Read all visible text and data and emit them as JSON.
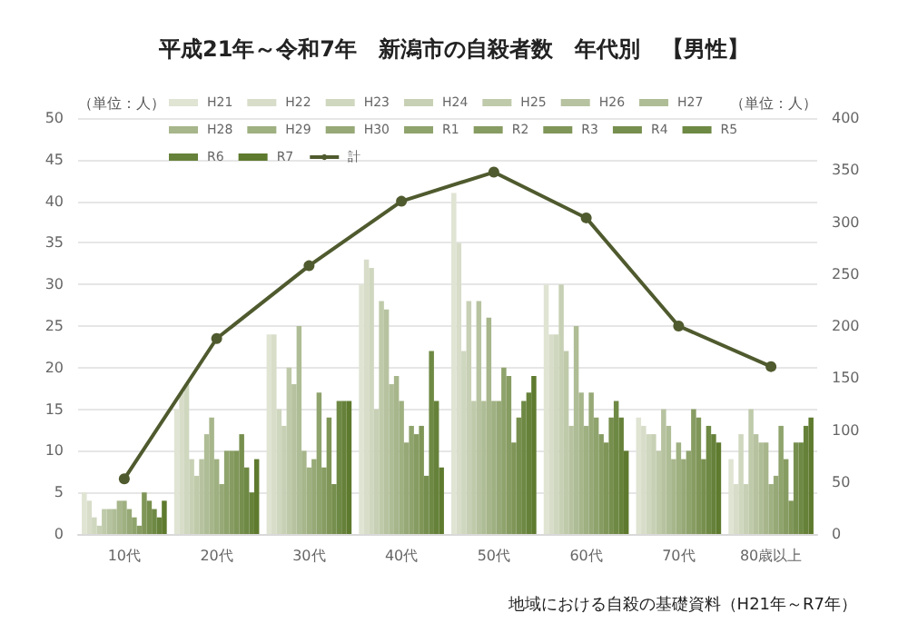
{
  "chart_data": {
    "type": "bar",
    "title": "平成21年～令和7年　新潟市の自殺者数　年代別　【男性】",
    "ylabel": "（単位：人）",
    "y2label": "（単位：人）",
    "categories": [
      "10代",
      "20代",
      "30代",
      "40代",
      "50代",
      "60代",
      "70代",
      "80歳以上"
    ],
    "ylim": [
      0,
      50
    ],
    "yticks": [
      0,
      5,
      10,
      15,
      20,
      25,
      30,
      35,
      40,
      45,
      50
    ],
    "y2lim": [
      0,
      400
    ],
    "y2ticks": [
      0,
      50,
      100,
      150,
      200,
      250,
      300,
      350,
      400
    ],
    "grid": "y",
    "legend": "top",
    "marker": "circle",
    "annotations": [
      "地域における自殺の基礎資料（H21年～R7年）"
    ],
    "series": [
      {
        "name": "H21",
        "color": "#dfe4d3",
        "values": [
          5,
          15,
          24,
          30,
          41,
          30,
          14,
          9
        ]
      },
      {
        "name": "H22",
        "color": "#d7ddc9",
        "values": [
          4,
          17,
          24,
          33,
          35,
          24,
          13,
          6
        ]
      },
      {
        "name": "H23",
        "color": "#cfd7bf",
        "values": [
          2,
          18,
          15,
          32,
          22,
          24,
          12,
          12
        ]
      },
      {
        "name": "H24",
        "color": "#c7d0b4",
        "values": [
          1,
          9,
          13,
          15,
          28,
          30,
          12,
          6
        ]
      },
      {
        "name": "H25",
        "color": "#bfcaaa",
        "values": [
          3,
          7,
          20,
          28,
          16,
          22,
          10,
          15
        ]
      },
      {
        "name": "H26",
        "color": "#b7c3a0",
        "values": [
          3,
          9,
          18,
          27,
          28,
          13,
          15,
          12
        ]
      },
      {
        "name": "H27",
        "color": "#afbd96",
        "values": [
          3,
          12,
          25,
          18,
          16,
          25,
          13,
          11
        ]
      },
      {
        "name": "H28",
        "color": "#a7b68b",
        "values": [
          4,
          14,
          10,
          19,
          26,
          17,
          9,
          11
        ]
      },
      {
        "name": "H29",
        "color": "#9fb081",
        "values": [
          4,
          9,
          8,
          16,
          16,
          13,
          11,
          6
        ]
      },
      {
        "name": "H30",
        "color": "#97a977",
        "values": [
          3,
          6,
          9,
          11,
          16,
          17,
          9,
          7
        ]
      },
      {
        "name": "R1",
        "color": "#8fa36d",
        "values": [
          2,
          10,
          17,
          13,
          20,
          14,
          10,
          13
        ]
      },
      {
        "name": "R2",
        "color": "#879c62",
        "values": [
          1,
          10,
          8,
          12,
          19,
          12,
          15,
          9
        ]
      },
      {
        "name": "R3",
        "color": "#7f9658",
        "values": [
          5,
          10,
          14,
          13,
          11,
          11,
          14,
          4
        ]
      },
      {
        "name": "R4",
        "color": "#778f4e",
        "values": [
          4,
          12,
          6,
          7,
          14,
          14,
          9,
          11
        ]
      },
      {
        "name": "R5",
        "color": "#6e8944",
        "values": [
          3,
          8,
          16,
          22,
          16,
          16,
          13,
          11
        ]
      },
      {
        "name": "R6",
        "color": "#66823a",
        "values": [
          2,
          5,
          16,
          16,
          17,
          14,
          12,
          13
        ]
      },
      {
        "name": "R7",
        "color": "#5e7a2e",
        "values": [
          4,
          9,
          16,
          8,
          19,
          10,
          11,
          14
        ]
      },
      {
        "name": "計",
        "type": "line",
        "axis": "y2",
        "color": "#4f5a2e",
        "values": [
          53,
          188,
          258,
          320,
          348,
          304,
          200,
          161
        ]
      }
    ]
  }
}
